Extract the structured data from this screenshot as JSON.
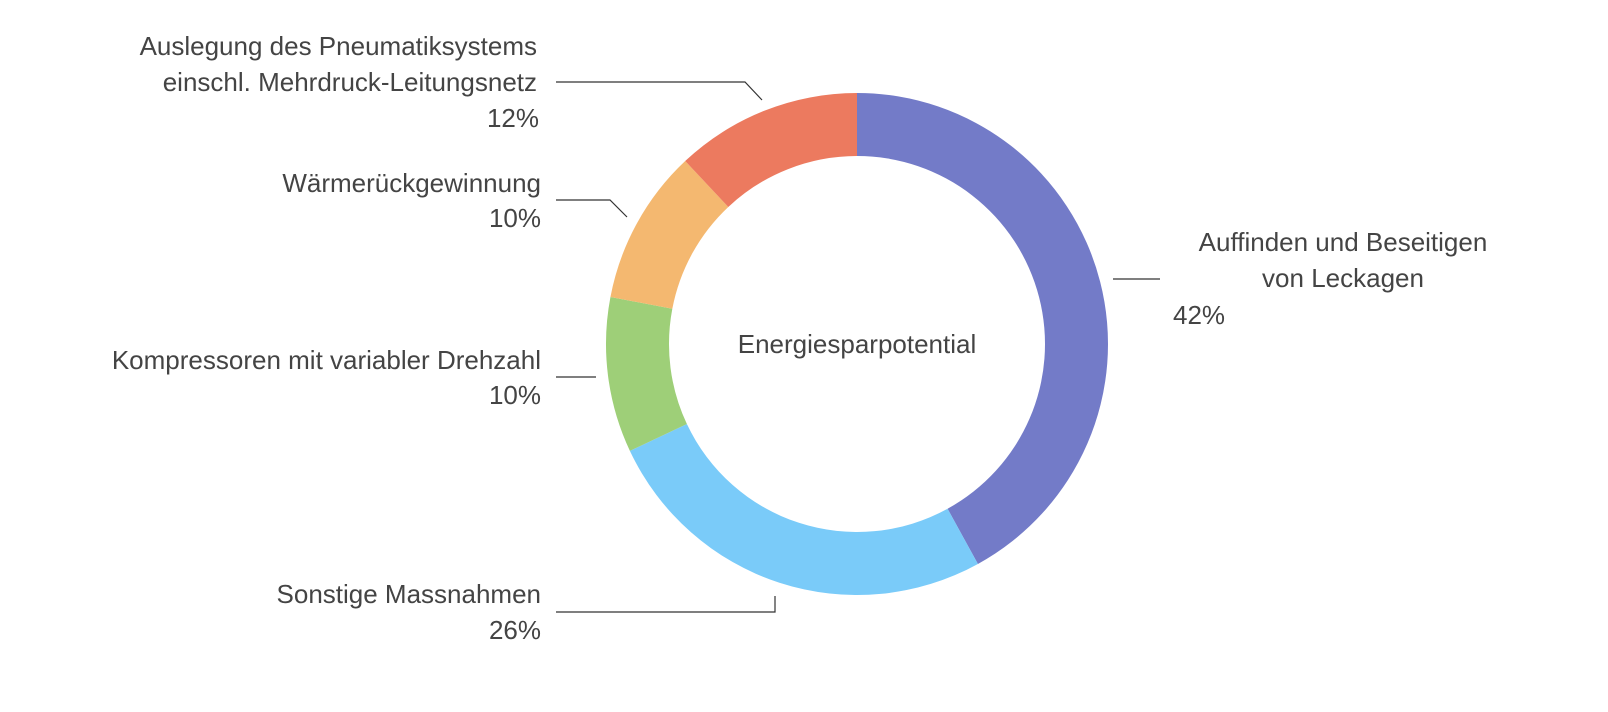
{
  "chart_data": {
    "type": "donut",
    "center_label": "Energiesparpotential",
    "labels": [
      [
        "Auffinden und Beseitigen",
        "von Leckagen"
      ],
      [
        "Sonstige Massnahmen"
      ],
      [
        "Kompressoren mit variabler Drehzahl"
      ],
      [
        "Wärmerückgewinnung"
      ],
      [
        "Auslegung des Pneumatiksystems",
        "einschl. Mehrdruck-Leitungsnetz"
      ]
    ],
    "values": [
      42,
      26,
      10,
      10,
      12
    ],
    "value_labels": [
      "42%",
      "26%",
      "10%",
      "10%",
      "12%"
    ],
    "colors": [
      "#737bc8",
      "#7acbf9",
      "#9ecf78",
      "#f4b870",
      "#ec7a5f"
    ]
  }
}
